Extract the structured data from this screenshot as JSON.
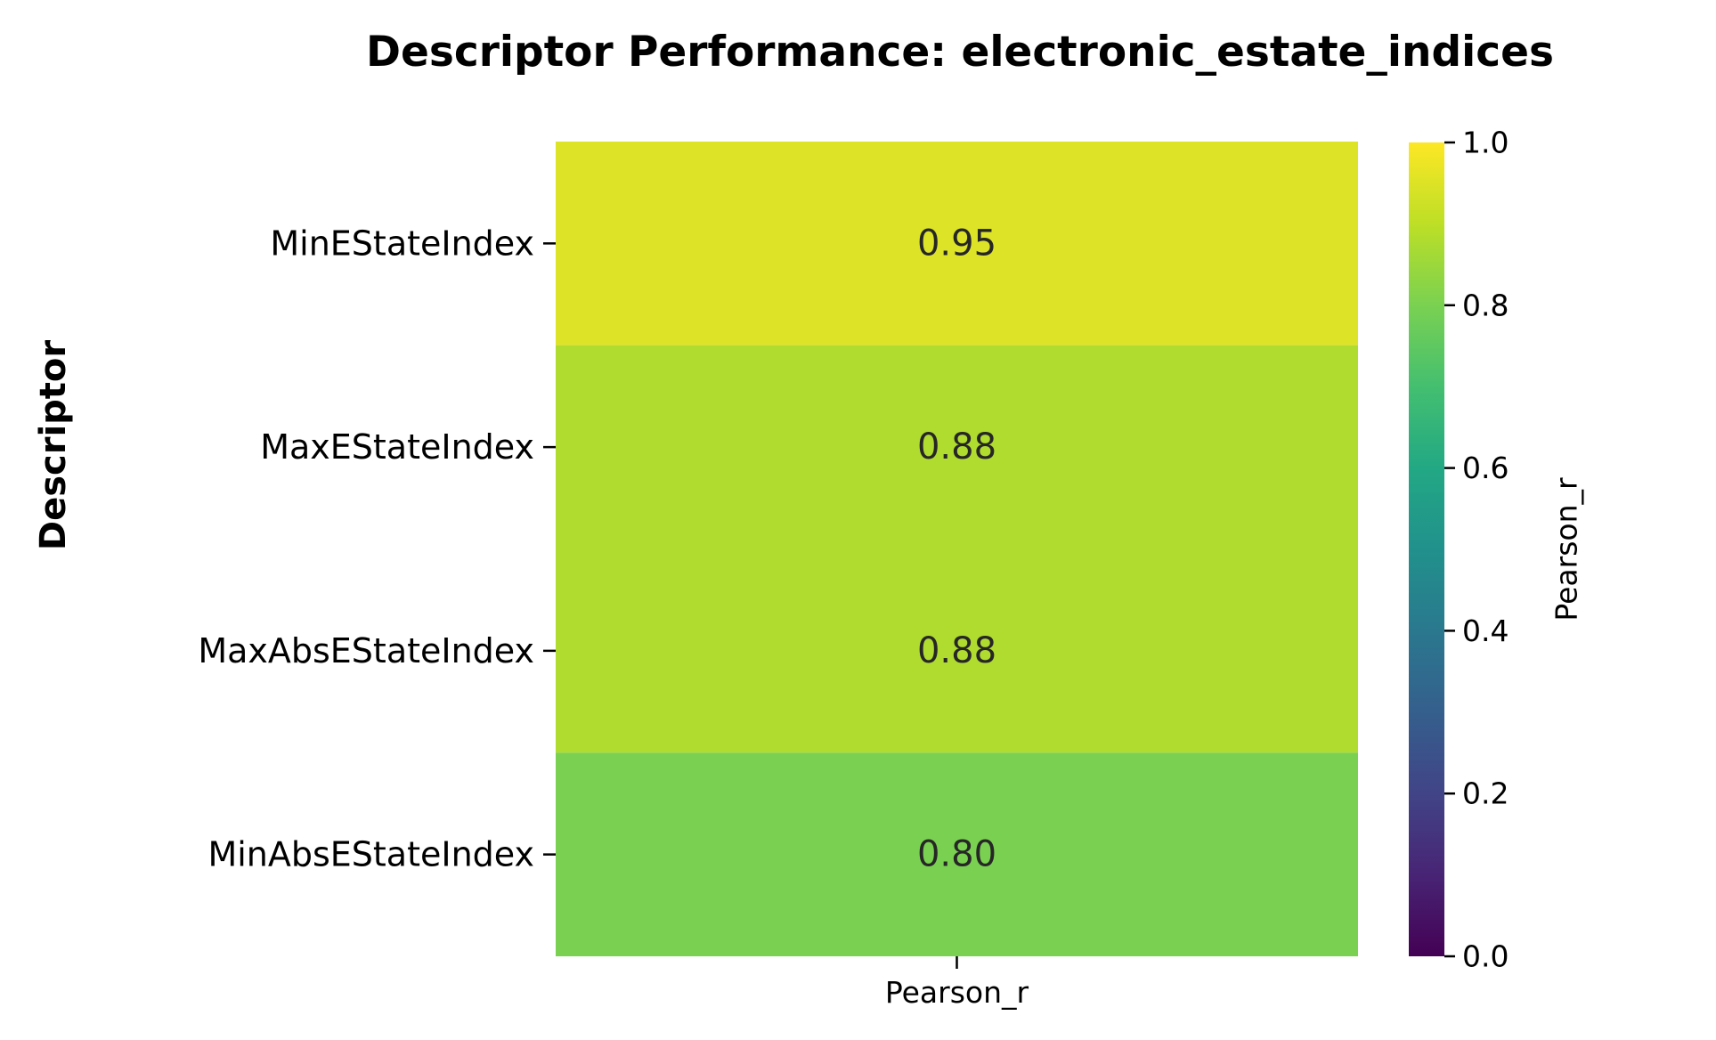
{
  "chart_data": {
    "type": "heatmap",
    "title": "Descriptor Performance: electronic_estate_indices",
    "ylabel": "Descriptor",
    "xlabel": "",
    "x_categories": [
      "Pearson_r"
    ],
    "y_categories": [
      "MinEStateIndex",
      "MaxEStateIndex",
      "MaxAbsEStateIndex",
      "MinAbsEStateIndex"
    ],
    "values": [
      [
        0.95
      ],
      [
        0.88
      ],
      [
        0.88
      ],
      [
        0.8
      ]
    ],
    "cell_labels": [
      [
        "0.95"
      ],
      [
        "0.88"
      ],
      [
        "0.88"
      ],
      [
        "0.80"
      ]
    ],
    "colormap": "viridis",
    "vmin": 0.0,
    "vmax": 1.0,
    "colorbar": {
      "label": "Pearson_r",
      "ticks": [
        0.0,
        0.2,
        0.4,
        0.6,
        0.8,
        1.0
      ],
      "tick_labels": [
        "0.0",
        "0.2",
        "0.4",
        "0.6",
        "0.8",
        "1.0"
      ]
    },
    "grid": false
  }
}
